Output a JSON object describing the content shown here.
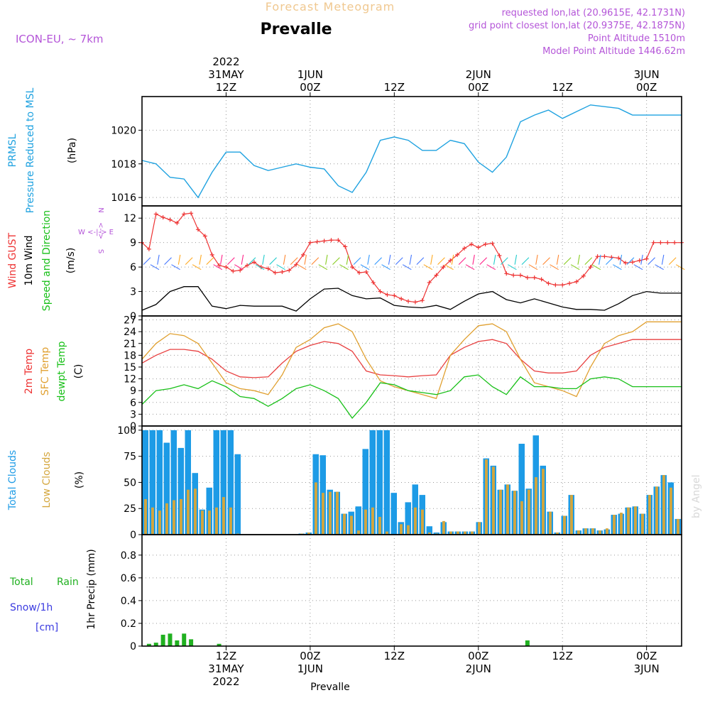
{
  "header": {
    "faded_title": "Forecast Meteogram",
    "location": "Prevalle",
    "model": "ICON-EU, ~ 7km",
    "requested": "requested lon,lat (20.9615E, 42.1731N)",
    "grid_point": "grid point closest lon,lat (20.9375E, 42.1875N)",
    "point_altitude": "Point Altitude 1510m",
    "model_altitude": "Model Point Altitude 1446.62m",
    "footer_location": "Prevalle",
    "watermark": "by Angel"
  },
  "time_axis": {
    "top_ticks": [
      {
        "hour": 12,
        "lines": [
          "2022",
          "31MAY",
          "12Z"
        ]
      },
      {
        "hour": 24,
        "lines": [
          "1JUN",
          "00Z"
        ]
      },
      {
        "hour": 36,
        "lines": [
          "12Z"
        ]
      },
      {
        "hour": 48,
        "lines": [
          "2JUN",
          "00Z"
        ]
      },
      {
        "hour": 60,
        "lines": [
          "12Z"
        ]
      },
      {
        "hour": 72,
        "lines": [
          "3JUN",
          "00Z"
        ]
      }
    ],
    "bottom_ticks": [
      {
        "hour": 12,
        "lines": [
          "12Z",
          "31MAY",
          "2022"
        ]
      },
      {
        "hour": 24,
        "lines": [
          "00Z",
          "1JUN"
        ]
      },
      {
        "hour": 36,
        "lines": [
          "12Z"
        ]
      },
      {
        "hour": 48,
        "lines": [
          "00Z",
          "2JUN"
        ]
      },
      {
        "hour": 60,
        "lines": [
          "12Z"
        ]
      },
      {
        "hour": 72,
        "lines": [
          "00Z",
          "3JUN"
        ]
      }
    ]
  },
  "labels": {
    "p1": [
      "PRMSL",
      "Pressure Reduced to MSL",
      "(hPa)"
    ],
    "p2": [
      "Wind GUST",
      "10m Wind",
      "Speed and Direction",
      "(m/s)"
    ],
    "p2_compass": [
      "N",
      "<-->",
      "S",
      "W <-|-> E"
    ],
    "p3": [
      "2m Temp",
      "SFC Temp",
      "dewpt Temp",
      "(C)"
    ],
    "p4": [
      "Total Clouds",
      "Low Clouds",
      "(%)"
    ],
    "p5": [
      "Total",
      "Rain",
      "Snow/1h",
      "[cm]",
      "1hr Precip (mm)"
    ]
  },
  "colors": {
    "pressure": "#1fa2e0",
    "gust": "#ee3333",
    "wind10m": "#000000",
    "temp2m": "#e84040",
    "sfc_temp": "#e0a030",
    "dewpt": "#18c018",
    "total_clouds": "#1d9be6",
    "low_clouds": "#d4a63c",
    "rain": "#20b020",
    "snow": "#3a3ae0",
    "purple": "#b455d8",
    "faded_orange": "#f0c890"
  },
  "chart_data": [
    {
      "type": "line",
      "name": "PRMSL",
      "ylim": [
        1015.5,
        1022
      ],
      "yticks": [
        1016,
        1018,
        1020
      ],
      "series": [
        {
          "name": "PRMSL",
          "x": [
            0,
            2,
            4,
            6,
            8,
            10,
            12,
            14,
            16,
            18,
            20,
            22,
            24,
            26,
            28,
            30,
            32,
            34,
            36,
            38,
            40,
            42,
            44,
            46,
            48,
            50,
            52,
            54,
            56,
            58,
            60,
            62,
            64,
            66,
            68,
            70,
            72,
            74,
            76,
            77
          ],
          "values": [
            1018.2,
            1018.0,
            1017.2,
            1017.1,
            1016.0,
            1017.5,
            1018.7,
            1018.7,
            1017.9,
            1017.6,
            1017.8,
            1018.0,
            1017.8,
            1017.7,
            1016.7,
            1016.3,
            1017.5,
            1019.4,
            1019.6,
            1019.4,
            1018.8,
            1018.8,
            1019.4,
            1019.2,
            1018.1,
            1017.5,
            1018.4,
            1020.5,
            1020.9,
            1021.2,
            1020.7,
            1021.1,
            1021.5,
            1021.4,
            1021.3,
            1020.9,
            1020.9,
            1020.9,
            1020.9,
            1020.9
          ]
        }
      ]
    },
    {
      "type": "line",
      "name": "Wind",
      "ylim": [
        0,
        13.5
      ],
      "yticks": [
        0,
        3,
        6,
        9,
        12
      ],
      "series": [
        {
          "name": "Wind GUST",
          "x": [
            0,
            1,
            2,
            3,
            4,
            5,
            6,
            7,
            8,
            9,
            10,
            11,
            12,
            13,
            14,
            15,
            16,
            17,
            18,
            19,
            20,
            21,
            22,
            23,
            24,
            25,
            26,
            27,
            28,
            29,
            30,
            31,
            32,
            33,
            34,
            35,
            36,
            37,
            38,
            39,
            40,
            41,
            42,
            43,
            44,
            45,
            46,
            47,
            48,
            49,
            50,
            51,
            52,
            53,
            54,
            55,
            56,
            57,
            58,
            59,
            60,
            61,
            62,
            63,
            64,
            65,
            66,
            67,
            68,
            69,
            70,
            71,
            72,
            73,
            74,
            75,
            76,
            77
          ],
          "values": [
            9.0,
            8.2,
            12.5,
            12.1,
            11.8,
            11.4,
            12.5,
            12.6,
            10.6,
            9.8,
            7.5,
            6.2,
            6.0,
            5.5,
            5.6,
            6.2,
            6.6,
            6.0,
            5.8,
            5.3,
            5.4,
            5.6,
            6.3,
            7.5,
            9.0,
            9.1,
            9.2,
            9.3,
            9.3,
            8.5,
            6.0,
            5.3,
            5.4,
            4.1,
            3.0,
            2.6,
            2.5,
            2.1,
            1.8,
            1.7,
            1.9,
            4.1,
            5.0,
            6.0,
            6.8,
            7.5,
            8.3,
            8.8,
            8.4,
            8.8,
            8.9,
            7.4,
            5.2,
            5.0,
            5.0,
            4.7,
            4.7,
            4.5,
            4.0,
            3.8,
            3.8,
            4.0,
            4.2,
            4.9,
            6.0,
            7.3,
            7.3,
            7.2,
            7.1,
            6.5,
            6.6,
            6.8,
            7.0,
            9.0,
            9.0,
            9.0,
            9.0,
            9.0
          ]
        },
        {
          "name": "10m Wind",
          "x": [
            0,
            2,
            4,
            6,
            8,
            10,
            12,
            14,
            16,
            18,
            20,
            22,
            24,
            26,
            28,
            30,
            32,
            34,
            36,
            38,
            40,
            42,
            44,
            46,
            48,
            50,
            52,
            54,
            56,
            58,
            60,
            62,
            64,
            66,
            68,
            70,
            72,
            74,
            76,
            77
          ],
          "values": [
            0.7,
            1.4,
            3.0,
            3.6,
            3.6,
            1.2,
            0.9,
            1.3,
            1.2,
            1.2,
            1.2,
            0.6,
            2.1,
            3.3,
            3.4,
            2.5,
            2.1,
            2.2,
            1.3,
            1.1,
            1.0,
            1.3,
            0.8,
            1.8,
            2.7,
            3.0,
            2.0,
            1.6,
            2.1,
            1.6,
            1.1,
            0.8,
            0.8,
            0.7,
            1.5,
            2.5,
            3.0,
            2.8,
            2.8,
            2.8
          ]
        }
      ]
    },
    {
      "type": "line",
      "name": "Temperature",
      "ylim": [
        0,
        28
      ],
      "yticks": [
        0,
        3,
        6,
        9,
        12,
        15,
        18,
        21,
        24,
        27
      ],
      "series": [
        {
          "name": "2m Temp",
          "x": [
            0,
            2,
            4,
            6,
            8,
            10,
            12,
            14,
            16,
            18,
            20,
            22,
            24,
            26,
            28,
            30,
            32,
            34,
            36,
            38,
            40,
            42,
            44,
            46,
            48,
            50,
            52,
            54,
            56,
            58,
            60,
            62,
            64,
            66,
            68,
            70,
            72,
            74,
            76,
            77
          ],
          "values": [
            16,
            18,
            19.5,
            19.5,
            19,
            17,
            14,
            12.5,
            12.3,
            12.5,
            16,
            19,
            20.5,
            21.5,
            21,
            19,
            14,
            13,
            12.8,
            12.5,
            12.8,
            13,
            18,
            20,
            21.5,
            22,
            21,
            17,
            14,
            13.5,
            13.5,
            14,
            18,
            20,
            21,
            22,
            22,
            22,
            22,
            22
          ]
        },
        {
          "name": "SFC Temp",
          "x": [
            0,
            2,
            4,
            6,
            8,
            10,
            12,
            14,
            16,
            18,
            20,
            22,
            24,
            26,
            28,
            30,
            32,
            34,
            36,
            38,
            40,
            42,
            44,
            46,
            48,
            50,
            52,
            54,
            56,
            58,
            60,
            62,
            64,
            66,
            68,
            70,
            72,
            74,
            76,
            77
          ],
          "values": [
            17,
            21,
            23.5,
            23,
            21,
            16,
            11,
            9.5,
            9,
            8,
            13,
            20,
            22,
            25,
            26,
            24,
            17,
            11.5,
            10,
            9,
            8,
            7,
            18,
            22,
            25.5,
            26,
            24,
            17,
            11,
            10,
            9,
            7.5,
            15,
            21,
            23,
            24,
            26.5,
            26.5,
            26.5,
            26.5
          ]
        },
        {
          "name": "dewpt Temp",
          "x": [
            0,
            2,
            4,
            6,
            8,
            10,
            12,
            14,
            16,
            18,
            20,
            22,
            24,
            26,
            28,
            30,
            32,
            34,
            36,
            38,
            40,
            42,
            44,
            46,
            48,
            50,
            52,
            54,
            56,
            58,
            60,
            62,
            64,
            66,
            68,
            70,
            72,
            74,
            76,
            77
          ],
          "values": [
            5.5,
            9,
            9.5,
            10.5,
            9.5,
            11.5,
            10,
            7.5,
            7,
            5,
            7,
            9.5,
            10.5,
            9,
            7,
            2,
            6,
            11,
            10.5,
            9,
            8.5,
            8,
            9,
            12.5,
            13,
            10,
            8,
            12.5,
            10,
            10,
            9.5,
            9.5,
            12,
            12.5,
            12,
            10,
            10,
            10,
            10,
            10
          ]
        }
      ]
    },
    {
      "type": "bar",
      "name": "Clouds",
      "ylim": [
        0,
        104
      ],
      "yticks": [
        0,
        25,
        50,
        75,
        100
      ],
      "series": [
        {
          "name": "Total Clouds",
          "values": [
            100,
            100,
            100,
            88,
            100,
            83,
            100,
            59,
            24,
            45,
            100,
            100,
            100,
            77,
            0,
            0,
            0,
            0,
            0,
            0,
            0,
            0,
            1,
            2,
            77,
            76,
            43,
            41,
            20,
            22,
            27,
            82,
            100,
            100,
            100,
            40,
            12,
            31,
            48,
            38,
            8,
            2,
            12,
            3,
            3,
            3,
            3,
            12,
            73,
            66,
            43,
            48,
            42,
            87,
            44,
            95,
            66,
            22,
            2,
            18,
            38,
            4,
            6,
            6,
            4,
            5,
            19,
            20,
            26,
            27,
            20,
            38,
            46,
            57,
            50,
            15
          ]
        },
        {
          "name": "Low Clouds",
          "values": [
            34,
            26,
            23,
            30,
            33,
            34,
            43,
            44,
            23,
            23,
            26,
            36,
            26,
            1,
            0,
            0,
            0,
            0,
            0,
            0,
            0,
            0,
            1,
            2,
            50,
            40,
            41,
            41,
            20,
            18,
            4,
            24,
            26,
            17,
            3,
            0,
            10,
            9,
            26,
            24,
            2,
            1,
            13,
            3,
            3,
            3,
            3,
            12,
            72,
            65,
            43,
            48,
            42,
            32,
            43,
            55,
            63,
            22,
            2,
            18,
            38,
            4,
            6,
            6,
            4,
            6,
            19,
            21,
            26,
            27,
            20,
            38,
            46,
            57,
            45,
            15
          ]
        }
      ]
    },
    {
      "type": "bar",
      "name": "Precipitation",
      "ylim": [
        0,
        0.98
      ],
      "yticks": [
        0,
        0.2,
        0.4,
        0.6,
        0.8
      ],
      "series": [
        {
          "name": "Rain",
          "x": [
            1,
            2,
            3,
            4,
            5,
            6,
            7,
            11,
            55
          ],
          "values": [
            0.02,
            0.03,
            0.1,
            0.11,
            0.05,
            0.11,
            0.06,
            0.02,
            0.05
          ]
        }
      ]
    }
  ]
}
